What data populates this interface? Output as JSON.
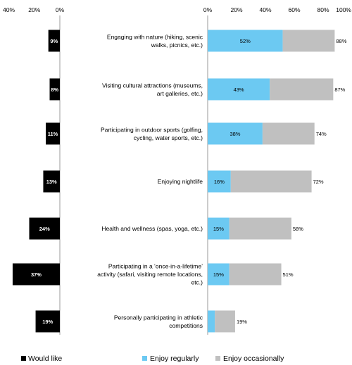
{
  "chart_data": {
    "type": "bar",
    "categories": [
      [
        "Engaging with nature (hiking, scenic",
        "walks, picnics, etc.)"
      ],
      [
        "Visiting cultural attractions (museums,",
        "art galleries, etc.)"
      ],
      [
        "Participating in outdoor sports (golfing,",
        "cycling, water sports, etc.)"
      ],
      [
        "Enjoying nightlife"
      ],
      [
        "Health and wellness (spas, yoga, etc.)"
      ],
      [
        "Participating in a ‘once-in-a-lifetime’",
        "activity (safari, visiting remote locations,",
        "etc.)"
      ]
    ],
    "categories_extra": [
      [
        "Personally participating in athletic",
        "competitions"
      ]
    ],
    "left_panel": {
      "series": [
        {
          "name": "Would like",
          "values": [
            9,
            8,
            11,
            13,
            24,
            37,
            19
          ],
          "labels": [
            "9%",
            "8%",
            "11%",
            "13%",
            "24%",
            "37%",
            "19%"
          ]
        }
      ],
      "xlim": [
        40,
        0
      ],
      "ticks": [
        "40%",
        "20%",
        "0%"
      ]
    },
    "right_panel": {
      "stacked": true,
      "series": [
        {
          "name": "Enjoy regularly",
          "values": [
            52,
            43,
            38,
            16,
            15,
            15,
            5
          ],
          "labels": [
            "52%",
            "43%",
            "38%",
            "16%",
            "15%",
            "15%",
            ""
          ]
        },
        {
          "name": "Enjoy occasionally",
          "values": [
            36,
            44,
            36,
            56,
            43,
            36,
            14
          ],
          "labels": [
            "88%",
            "87%",
            "74%",
            "72%",
            "58%",
            "51%",
            "19%"
          ]
        }
      ],
      "xlim": [
        0,
        100
      ],
      "ticks": [
        "0%",
        "20%",
        "40%",
        "60%",
        "80%",
        "100%"
      ]
    },
    "colors": {
      "would_like": "#000000",
      "regularly": "#6cc9f2",
      "occasionally": "#c0c0c0",
      "axis": "#999999"
    },
    "legend": {
      "position": "bottom",
      "items": [
        {
          "label": "Would like",
          "color": "#000000"
        },
        {
          "label": "Enjoy regularly",
          "color": "#6cc9f2"
        },
        {
          "label": "Enjoy occasionally",
          "color": "#c0c0c0"
        }
      ]
    }
  }
}
